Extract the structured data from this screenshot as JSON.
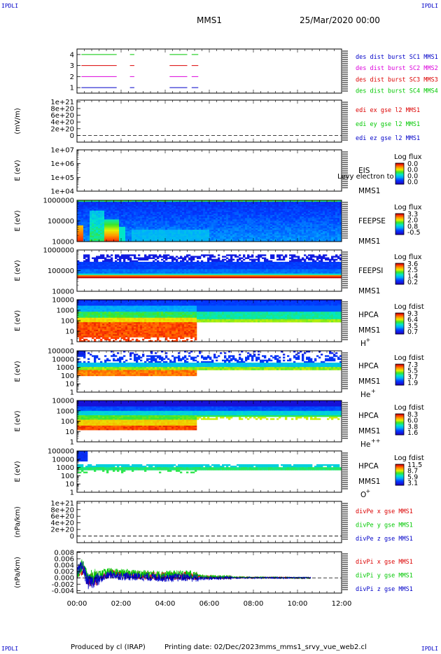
{
  "corner_label": "IPDLI",
  "header": {
    "title": "MMS1",
    "date": "25/Mar/2020 00:00"
  },
  "footer": {
    "produced": "Produced by cl (IRAP)",
    "printing": "Printing date: 02/Dec/2023",
    "script": "mms_mms1_srvy_vue_web2.cl"
  },
  "time_axis": {
    "ticks": [
      "00:00",
      "02:00",
      "04:00",
      "06:00",
      "08:00",
      "10:00",
      "12:00"
    ],
    "range_hours": [
      0,
      12
    ]
  },
  "colors": {
    "blue": "#0000c8",
    "red": "#dc0000",
    "magenta": "#dc00dc",
    "green": "#00c800",
    "black": "#000000"
  },
  "chart_data": [
    {
      "id": "burst",
      "type": "line",
      "ylim": [
        0.5,
        4.5
      ],
      "yticks": [
        "1",
        "2",
        "3",
        "4"
      ],
      "series": [
        {
          "name": "des dist burst SC1 MMS1",
          "color": "blue",
          "y": 1,
          "segments": [
            [
              0.2,
              1.8
            ],
            [
              2.4,
              2.6
            ],
            [
              4.2,
              5.0
            ],
            [
              5.2,
              5.5
            ]
          ]
        },
        {
          "name": "des dist burst SC2 MMS2",
          "color": "magenta",
          "y": 2,
          "segments": [
            [
              0.2,
              1.8
            ],
            [
              2.4,
              2.6
            ],
            [
              4.2,
              5.0
            ],
            [
              5.2,
              5.5
            ]
          ]
        },
        {
          "name": "des dist burst SC3 MMS3",
          "color": "red",
          "y": 3,
          "segments": [
            [
              0.2,
              1.8
            ],
            [
              2.4,
              2.6
            ],
            [
              4.2,
              5.0
            ],
            [
              5.2,
              5.5
            ]
          ]
        },
        {
          "name": "des dist burst SC4 MMS4",
          "color": "green",
          "y": 4,
          "segments": [
            [
              0.2,
              1.8
            ],
            [
              2.4,
              2.6
            ],
            [
              4.2,
              5.0
            ],
            [
              5.2,
              5.5
            ]
          ]
        }
      ]
    },
    {
      "id": "edi",
      "type": "line",
      "ylabel": "(mV/m)",
      "ylim": [
        -2e+20,
        1.05e+21
      ],
      "yticks": [
        "0",
        "2e+20",
        "4e+20",
        "6e+20",
        "8e+20",
        "1e+21"
      ],
      "ytick_values": [
        0,
        2e+20,
        4e+20,
        6e+20,
        8e+20,
        1e+21
      ],
      "zero_line": true,
      "series": [
        {
          "name": "edi ex gse l2 MMS1",
          "color": "red"
        },
        {
          "name": "edi ey gse l2 MMS1",
          "color": "green"
        },
        {
          "name": "edi ez gse l2 MMS1",
          "color": "blue"
        }
      ]
    },
    {
      "id": "eis",
      "type": "heatmap",
      "ylabel": "E (eV)",
      "log_y": true,
      "ylim": [
        10000.0,
        10000000.0
      ],
      "yticks": [
        "1e+04",
        "1e+05",
        "1e+06",
        "1e+07"
      ],
      "label": [
        "EIS",
        "MMS1"
      ],
      "overlay_text": "Levy electron to",
      "cbar_title": "Log flux",
      "cbar_ticks": [
        "0.0",
        "0.0",
        "0.0",
        "0.0"
      ],
      "data": "none"
    },
    {
      "id": "feeps_e",
      "type": "heatmap",
      "ylabel": "E (eV)",
      "log_y": true,
      "ylim": [
        10000.0,
        1000000.0
      ],
      "yticks": [
        "10000",
        "100000",
        "1000000"
      ],
      "label": [
        "FEEPSE",
        "MMS1"
      ],
      "cbar_title": "Log flux",
      "cbar_ticks": [
        "3.3",
        "2.0",
        "0.8",
        "-0.5"
      ]
    },
    {
      "id": "feeps_i",
      "type": "heatmap",
      "ylabel": "E (eV)",
      "log_y": true,
      "ylim": [
        10000.0,
        1000000.0
      ],
      "yticks": [
        "10000",
        "100000",
        "1000000"
      ],
      "label": [
        "FEEPSI",
        "MMS1"
      ],
      "cbar_title": "Log flux",
      "cbar_ticks": [
        "3.6",
        "2.5",
        "1.4",
        "0.2"
      ]
    },
    {
      "id": "hpca_h",
      "type": "heatmap",
      "ylabel": "E (eV)",
      "log_y": true,
      "ylim": [
        1,
        10000.0
      ],
      "yticks": [
        "1",
        "10",
        "100",
        "1000",
        "10000"
      ],
      "label": [
        "HPCA",
        "MMS1",
        "H"
      ],
      "species_sup": "+",
      "cbar_title": "Log fdist",
      "cbar_ticks": [
        "9.3",
        "6.4",
        "3.5",
        "0.7"
      ]
    },
    {
      "id": "hpca_he",
      "type": "heatmap",
      "ylabel": "E (eV)",
      "log_y": true,
      "ylim": [
        1,
        100000.0
      ],
      "yticks": [
        "1",
        "10",
        "100",
        "1000",
        "10000",
        "100000"
      ],
      "label": [
        "HPCA",
        "MMS1",
        "He"
      ],
      "species_sup": "+",
      "cbar_title": "Log fdist",
      "cbar_ticks": [
        "7.3",
        "5.5",
        "3.7",
        "1.9"
      ]
    },
    {
      "id": "hpca_he2",
      "type": "heatmap",
      "ylabel": "E (eV)",
      "log_y": true,
      "ylim": [
        1,
        10000.0
      ],
      "yticks": [
        "1",
        "10",
        "100",
        "1000",
        "10000"
      ],
      "label": [
        "HPCA",
        "MMS1",
        "He"
      ],
      "species_sup": "++",
      "cbar_title": "Log fdist",
      "cbar_ticks": [
        "8.3",
        "6.0",
        "3.8",
        "1.6"
      ]
    },
    {
      "id": "hpca_o",
      "type": "heatmap",
      "ylabel": "E (eV)",
      "log_y": true,
      "ylim": [
        1,
        100000.0
      ],
      "yticks": [
        "1",
        "10",
        "100",
        "1000",
        "10000",
        "100000"
      ],
      "label": [
        "HPCA",
        "MMS1",
        "O"
      ],
      "species_sup": "+",
      "cbar_title": "Log fdist",
      "cbar_ticks": [
        "11.5",
        "8.7",
        "5.9",
        "3.1"
      ]
    },
    {
      "id": "divpe",
      "type": "line",
      "ylabel": "(nPa/km)",
      "ylim": [
        -2e+20,
        1.05e+21
      ],
      "yticks": [
        "0",
        "2e+20",
        "4e+20",
        "6e+20",
        "8e+20",
        "1e+21"
      ],
      "ytick_values": [
        0,
        2e+20,
        4e+20,
        6e+20,
        8e+20,
        1e+21
      ],
      "zero_line": true,
      "series": [
        {
          "name": "divPe x gse MMS1",
          "color": "red"
        },
        {
          "name": "divPe y gse MMS1",
          "color": "green"
        },
        {
          "name": "divPe z gse MMS1",
          "color": "blue"
        }
      ]
    },
    {
      "id": "divpi",
      "type": "line",
      "ylabel": "(nPa/km)",
      "ylim": [
        -0.0048,
        0.0082
      ],
      "yticks": [
        "-0.004",
        "-0.002",
        "0.000",
        "0.002",
        "0.004",
        "0.006",
        "0.008"
      ],
      "ytick_values": [
        -0.004,
        -0.002,
        0,
        0.002,
        0.004,
        0.006,
        0.008
      ],
      "zero_line": true,
      "series": [
        {
          "name": "divPi x gse MMS1",
          "color": "red",
          "x": [
            0,
            0.25,
            0.5,
            1,
            1.5,
            2,
            3,
            4,
            5,
            5.5,
            6,
            7,
            8,
            9,
            10,
            10.6
          ],
          "y": [
            0.0005,
            0.003,
            -0.001,
            0.0,
            0.0015,
            0.001,
            0.0008,
            0.0005,
            0.0007,
            0.0004,
            0.0002,
            0.0001,
            0.0001,
            0.0001,
            0.0,
            0.0
          ]
        },
        {
          "name": "divPi y gse MMS1",
          "color": "green",
          "x": [
            0,
            0.25,
            0.5,
            1,
            1.5,
            2,
            3,
            4,
            5,
            5.5,
            6,
            7,
            8,
            9,
            10,
            10.6
          ],
          "y": [
            0.001,
            0.004,
            0.0,
            0.001,
            0.002,
            0.0015,
            0.0012,
            0.001,
            0.0012,
            0.0006,
            0.0003,
            0.0002,
            0.0001,
            0.0001,
            0.0,
            0.0
          ]
        },
        {
          "name": "divPi z gse MMS1",
          "color": "blue",
          "x": [
            0,
            0.25,
            0.5,
            1,
            1.5,
            2,
            3,
            4,
            5,
            5.5,
            6,
            7,
            8,
            9,
            10,
            10.6
          ],
          "y": [
            0.0015,
            0.0035,
            -0.0015,
            -0.0005,
            0.001,
            0.0005,
            0.0003,
            0.0,
            0.0002,
            -0.0002,
            -0.0001,
            0.0,
            0.0,
            0.0,
            0.0,
            0.0
          ]
        }
      ]
    }
  ]
}
